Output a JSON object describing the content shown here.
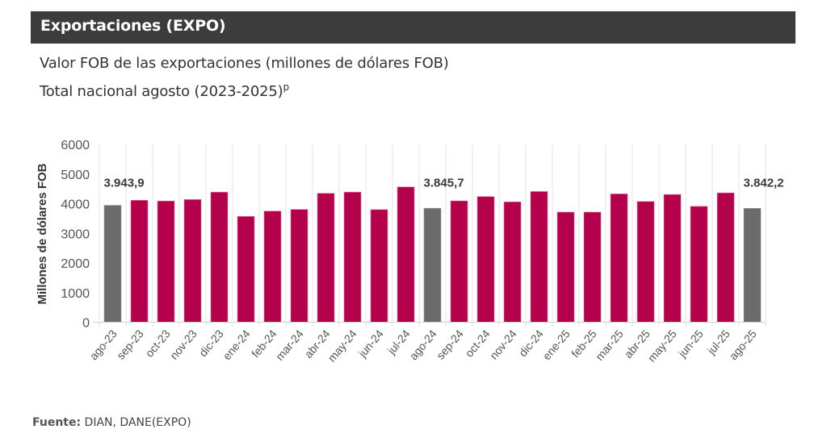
{
  "header": {
    "title": "Exportaciones (EXPO)",
    "subtitle_line1": "Valor FOB de las exportaciones (millones de dólares FOB)",
    "subtitle_line2": "Total nacional agosto (2023-2025)",
    "subtitle_superscript": "p"
  },
  "footer": {
    "source_label": "Fuente:",
    "source_value": " DIAN, DANE(EXPO)"
  },
  "colors": {
    "highlight_bar": "#6b6b6b",
    "regular_bar": "#b5004b",
    "header_bg": "#3c3c3c",
    "grid": "#e3e3e3"
  },
  "chart_data": {
    "type": "bar",
    "title": "Valor FOB de las exportaciones (millones de dólares FOB)",
    "subtitle": "Total nacional agosto (2023-2025)p",
    "xlabel": "",
    "ylabel": "Millones de dólares FOB",
    "ylim": [
      0,
      6000
    ],
    "yticks": [
      0,
      1000,
      2000,
      3000,
      4000,
      5000,
      6000
    ],
    "grid": true,
    "categories": [
      "ago-23",
      "sep-23",
      "oct-23",
      "nov-23",
      "dic-23",
      "ene-24",
      "feb-24",
      "mar-24",
      "abr-24",
      "may-24",
      "jun-24",
      "jul-24",
      "ago-24",
      "sep-24",
      "oct-24",
      "nov-24",
      "dic-24",
      "ene-25",
      "feb-25",
      "mar-25",
      "abr-25",
      "may-25",
      "jun-25",
      "jul-25",
      "ago-25"
    ],
    "values": [
      3943.9,
      4115,
      4090,
      4140,
      4390,
      3570,
      3750,
      3805,
      4350,
      4390,
      3800,
      4565,
      3845.7,
      4095,
      4240,
      4060,
      4410,
      3715,
      3715,
      4330,
      4075,
      4310,
      3910,
      4365,
      3842.2
    ],
    "highlighted": [
      true,
      false,
      false,
      false,
      false,
      false,
      false,
      false,
      false,
      false,
      false,
      false,
      true,
      false,
      false,
      false,
      false,
      false,
      false,
      false,
      false,
      false,
      false,
      false,
      true
    ],
    "data_labels": [
      {
        "category": "ago-23",
        "text": "3.943,9"
      },
      {
        "category": "ago-24",
        "text": "3.845,7"
      },
      {
        "category": "ago-25",
        "text": "3.842,2"
      }
    ]
  }
}
